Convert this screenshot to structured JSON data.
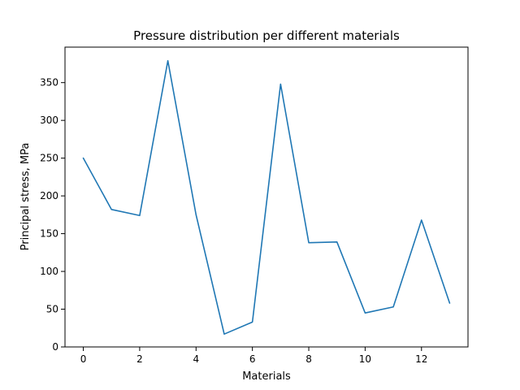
{
  "chart_data": {
    "type": "line",
    "title": "Pressure distribution per different materials",
    "xlabel": "Materials",
    "ylabel": "Principal stress, MPa",
    "x": [
      0,
      1,
      2,
      3,
      4,
      5,
      6,
      7,
      8,
      9,
      10,
      11,
      12,
      13
    ],
    "series": [
      {
        "color": "#1f77b4",
        "values": [
          250,
          182,
          174,
          379,
          175,
          17,
          33,
          348,
          138,
          139,
          45,
          53,
          168,
          58
        ]
      }
    ],
    "xlim": [
      -0.65,
      13.65
    ],
    "ylim": [
      0,
      397
    ],
    "xticks": [
      0,
      2,
      4,
      6,
      8,
      10,
      12
    ],
    "yticks": [
      0,
      50,
      100,
      150,
      200,
      250,
      300,
      350
    ],
    "grid": false,
    "legend": "none"
  }
}
